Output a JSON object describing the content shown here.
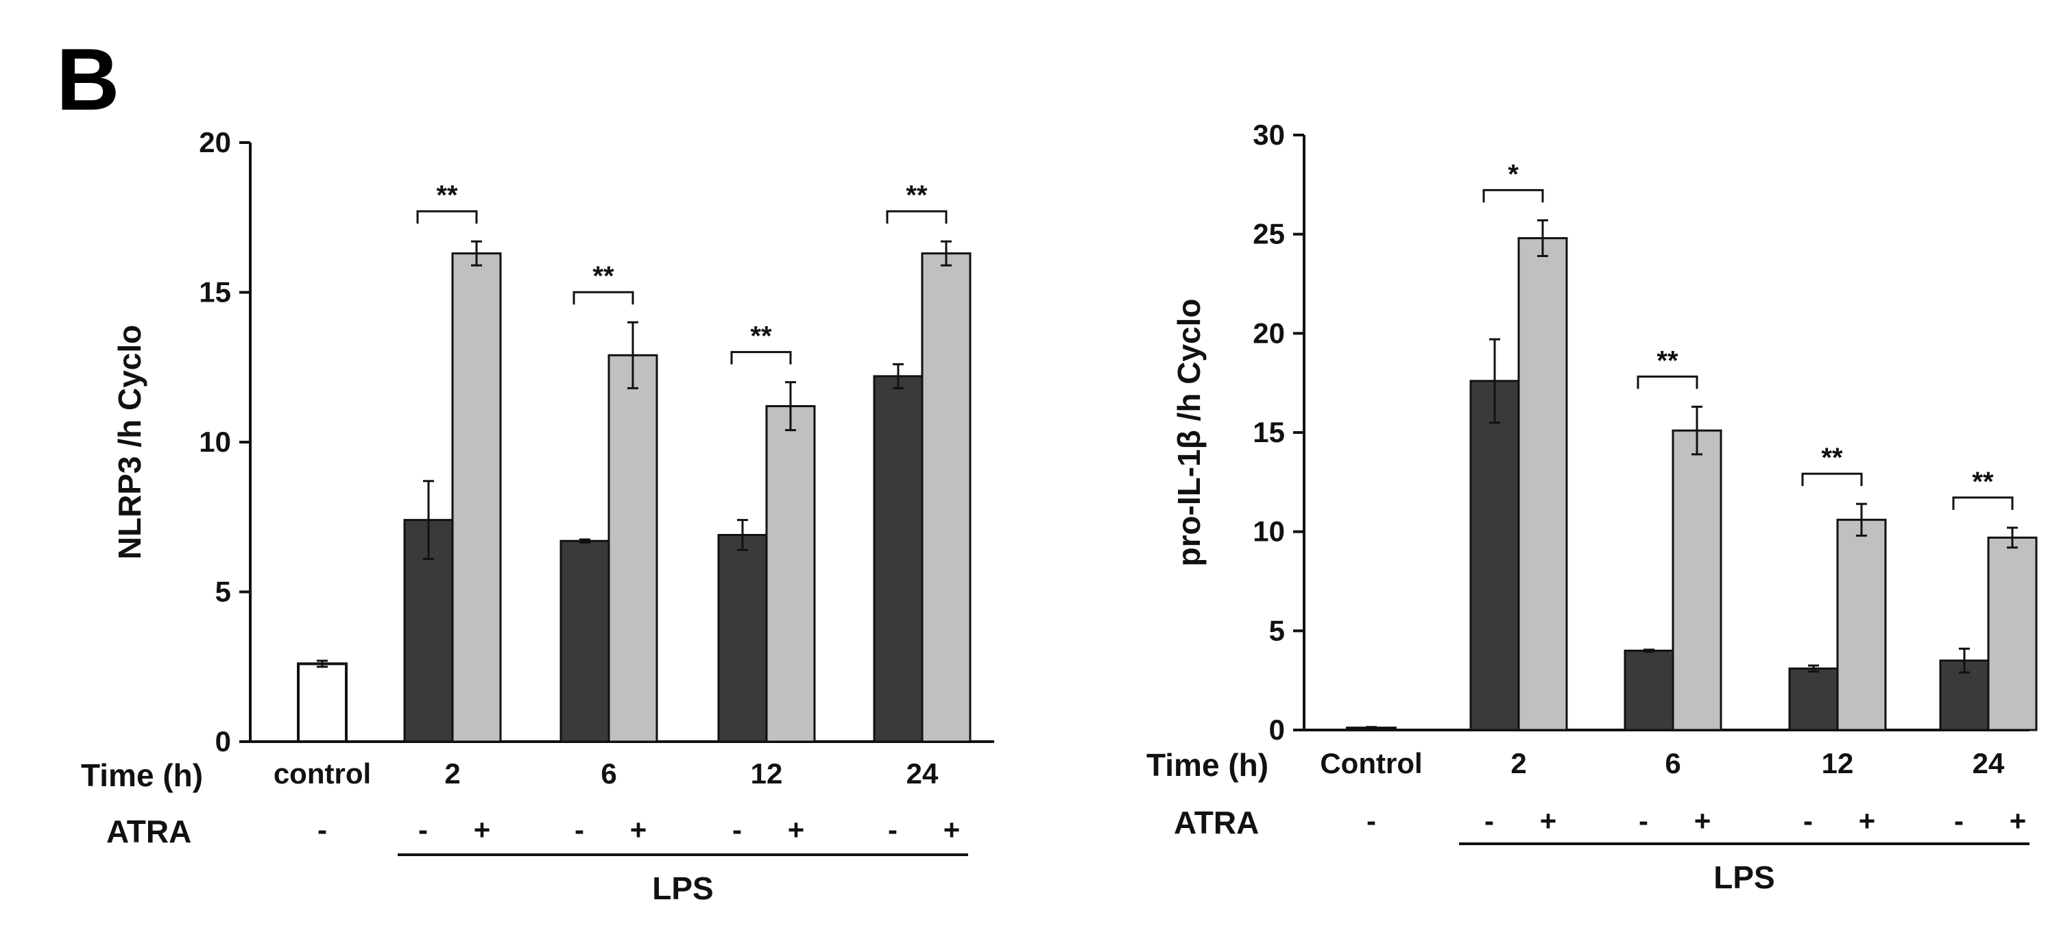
{
  "figure": {
    "panel_letter": "B",
    "time_label": "Time (h)",
    "atra_label": "ATRA",
    "lps_label": "LPS"
  },
  "colors": {
    "control_fill": "#ffffff",
    "no_atra_fill": "#3a3a3a",
    "atra_fill": "#c0c0c0",
    "axis": "#111111"
  },
  "chart_data": [
    {
      "type": "bar",
      "ylabel": "NLRP3 /h Cyclo",
      "ylim": [
        0,
        20
      ],
      "yticks": [
        "0",
        "5",
        "10",
        "15",
        "20"
      ],
      "control": {
        "label": "control",
        "value": 2.6,
        "error": 0.1,
        "atra": "-"
      },
      "categories": [
        "2",
        "6",
        "12",
        "24"
      ],
      "series": [
        {
          "name": "-",
          "values": [
            7.4,
            6.7,
            6.9,
            12.2
          ],
          "errors": [
            1.3,
            0.05,
            0.5,
            0.4
          ]
        },
        {
          "name": "+",
          "values": [
            16.3,
            12.9,
            11.2,
            16.3
          ],
          "errors": [
            0.4,
            1.1,
            0.8,
            0.4
          ]
        }
      ],
      "significance": [
        "**",
        "**",
        "**",
        "**"
      ]
    },
    {
      "type": "bar",
      "ylabel": "pro-IL-1β /h Cyclo",
      "ylim": [
        0,
        30
      ],
      "yticks": [
        "0",
        "5",
        "10",
        "15",
        "20",
        "25",
        "30"
      ],
      "control": {
        "label": "Control",
        "value": 0.1,
        "error": 0.05,
        "atra": "-"
      },
      "categories": [
        "2",
        "6",
        "12",
        "24"
      ],
      "series": [
        {
          "name": "-",
          "values": [
            17.6,
            4.0,
            3.1,
            3.5
          ],
          "errors": [
            2.1,
            0.05,
            0.15,
            0.6
          ]
        },
        {
          "name": "+",
          "values": [
            24.8,
            15.1,
            10.6,
            9.7
          ],
          "errors": [
            0.9,
            1.2,
            0.8,
            0.5
          ]
        }
      ],
      "significance": [
        "*",
        "**",
        "**",
        "**"
      ]
    }
  ]
}
